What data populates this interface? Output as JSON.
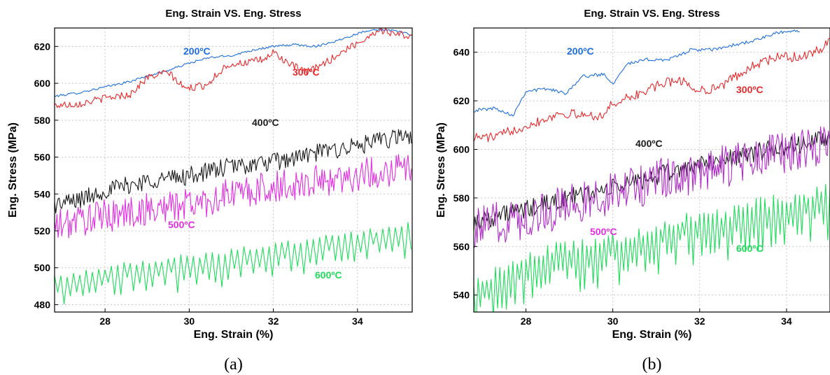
{
  "chart_data": [
    {
      "type": "line",
      "title": "Eng. Strain VS. Eng. Stress",
      "xlabel": "Eng. Strain (%)",
      "ylabel": "Eng. Stress (MPa)",
      "caption": "(a)",
      "xlim": [
        26.8,
        35.3
      ],
      "ylim": [
        476,
        630
      ],
      "xticks": [
        28,
        30,
        32,
        34
      ],
      "yticks": [
        480,
        500,
        520,
        540,
        560,
        580,
        600,
        620
      ],
      "grid": true,
      "series": [
        {
          "name": "200ºC",
          "color": "#1f6fe0",
          "x": [
            26.8,
            27.4,
            28.0,
            28.6,
            29.0,
            29.5,
            30.0,
            30.5,
            31.0,
            31.5,
            32.0,
            32.5,
            33.0,
            33.5,
            34.0,
            34.3,
            34.6,
            35.0,
            35.3
          ],
          "y": [
            593,
            595,
            598,
            601,
            604,
            607,
            611,
            614,
            615,
            618,
            620,
            621,
            620,
            623,
            627,
            629,
            629,
            628,
            626
          ]
        },
        {
          "name": "300ºC",
          "color": "#e8292b",
          "x": [
            26.8,
            27.4,
            28.0,
            28.6,
            29.0,
            29.5,
            29.9,
            30.4,
            30.9,
            31.3,
            31.8,
            32.0,
            32.4,
            32.8,
            33.3,
            33.7,
            34.1,
            34.5,
            34.9,
            35.3
          ],
          "y": [
            588,
            589,
            592,
            594,
            603,
            606,
            597,
            599,
            610,
            611,
            613,
            617,
            610,
            606,
            612,
            618,
            623,
            629,
            627,
            625
          ]
        },
        {
          "name": "400ºC",
          "color": "#1a1a1a",
          "x": [
            26.8,
            27.4,
            28.0,
            28.6,
            29.2,
            29.8,
            30.4,
            31.0,
            31.6,
            32.2,
            32.8,
            33.4,
            34.0,
            34.6,
            35.3
          ],
          "y": [
            534,
            537,
            542,
            545,
            548,
            549,
            552,
            555,
            556,
            558,
            561,
            564,
            566,
            569,
            572
          ]
        },
        {
          "name": "500ºC",
          "color": "#e22ee2",
          "x": [
            26.8,
            27.4,
            28.0,
            28.6,
            29.2,
            29.8,
            30.4,
            31.0,
            31.6,
            32.2,
            32.8,
            33.4,
            34.0,
            34.6,
            35.3
          ],
          "y": [
            522,
            526,
            528,
            530,
            532,
            534,
            536,
            540,
            542,
            544,
            546,
            548,
            550,
            552,
            556
          ]
        },
        {
          "name": "600ºC",
          "color": "#1edc5a",
          "x": [
            26.8,
            27.4,
            28.0,
            28.6,
            29.2,
            29.8,
            30.4,
            31.0,
            31.6,
            32.2,
            32.8,
            33.4,
            34.0,
            34.6,
            35.3
          ],
          "y": [
            495,
            497,
            500,
            502,
            504,
            506,
            507,
            509,
            511,
            513,
            515,
            517,
            519,
            521,
            524
          ]
        }
      ]
    },
    {
      "type": "line",
      "title": "Eng. Strain VS. Eng. Stress",
      "xlabel": "Eng. Strain (%)",
      "ylabel": "Eng. Stress (MPa)",
      "caption": "(b)",
      "xlim": [
        26.8,
        35.0
      ],
      "ylim": [
        533,
        650
      ],
      "xticks": [
        28,
        30,
        32,
        34
      ],
      "yticks": [
        540,
        560,
        580,
        600,
        620,
        640
      ],
      "grid": true,
      "series": [
        {
          "name": "200ºC",
          "color": "#1f6fe0",
          "x": [
            26.8,
            27.3,
            27.7,
            28.0,
            28.5,
            28.9,
            29.3,
            29.8,
            30.0,
            30.3,
            30.8,
            31.3,
            31.8,
            32.3,
            32.8,
            33.3,
            33.8,
            34.3
          ],
          "y": [
            616,
            617,
            614,
            624,
            625,
            623,
            630,
            631,
            627,
            635,
            637,
            637,
            641,
            641,
            643,
            645,
            648,
            649
          ]
        },
        {
          "name": "300ºC",
          "color": "#e8292b",
          "x": [
            26.8,
            27.3,
            27.7,
            28.2,
            28.8,
            29.3,
            29.8,
            30.0,
            30.5,
            31.0,
            31.5,
            32.0,
            32.5,
            32.9,
            33.3,
            33.8,
            34.3,
            34.8,
            35.0
          ],
          "y": [
            605,
            605,
            608,
            611,
            615,
            614,
            614,
            619,
            622,
            626,
            629,
            624,
            626,
            631,
            635,
            638,
            638,
            641,
            645
          ]
        },
        {
          "name": "400ºC",
          "color": "#1a1a1a",
          "x": [
            26.8,
            27.4,
            28.0,
            28.6,
            29.2,
            29.8,
            30.4,
            31.0,
            31.6,
            32.2,
            32.8,
            33.4,
            34.0,
            34.6,
            35.0
          ],
          "y": [
            570,
            573,
            575,
            578,
            581,
            583,
            586,
            589,
            592,
            594,
            597,
            599,
            601,
            603,
            605
          ]
        },
        {
          "name": "500ºC",
          "color": "#b02cc8",
          "x": [
            26.8,
            27.4,
            28.0,
            28.6,
            29.2,
            29.8,
            30.4,
            31.0,
            31.6,
            32.2,
            32.8,
            33.4,
            34.0,
            34.6,
            35.0
          ],
          "y": [
            567,
            570,
            572,
            575,
            578,
            581,
            584,
            587,
            589,
            591,
            594,
            597,
            599,
            601,
            603
          ]
        },
        {
          "name": "600ºC",
          "color": "#1edc5a",
          "x": [
            26.8,
            27.4,
            28.0,
            28.6,
            29.2,
            29.8,
            30.4,
            31.0,
            31.6,
            32.2,
            32.8,
            33.4,
            34.0,
            34.6,
            35.0
          ],
          "y": [
            546,
            550,
            556,
            559,
            561,
            563,
            565,
            568,
            571,
            573,
            575,
            578,
            580,
            582,
            584
          ]
        }
      ]
    }
  ]
}
